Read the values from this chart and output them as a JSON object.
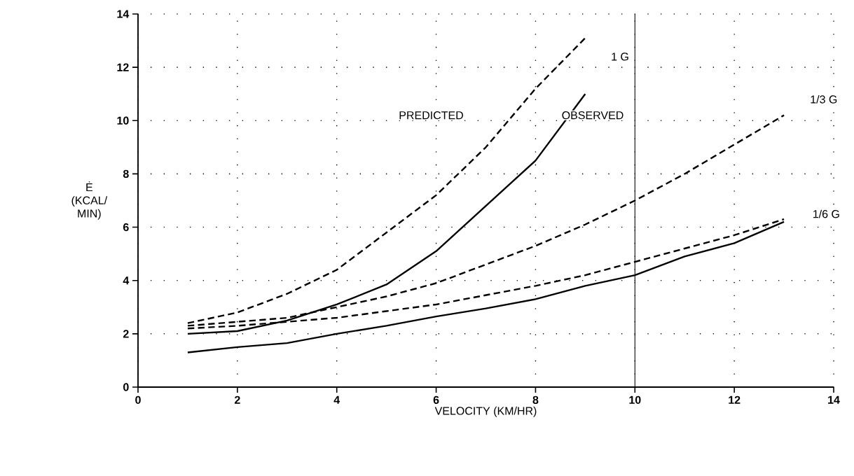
{
  "chart_data": {
    "type": "line",
    "xlabel": "VELOCITY (KM/HR)",
    "ylabel": "Ė (KCAL/ MIN)",
    "xlim": [
      0,
      14
    ],
    "ylim": [
      0,
      14
    ],
    "xticks": [
      0,
      2,
      4,
      6,
      8,
      10,
      12,
      14
    ],
    "yticks": [
      0,
      2,
      4,
      6,
      8,
      10,
      12,
      14
    ],
    "grid": true,
    "marker": "none",
    "series": [
      {
        "color": "#000000",
        "line_style": "dashed",
        "x": [
          1,
          2,
          3,
          4,
          5,
          6,
          7,
          8,
          9
        ],
        "values": [
          2.4,
          2.8,
          3.5,
          4.4,
          5.8,
          7.2,
          9.0,
          11.2,
          13.1
        ]
      },
      {
        "color": "#000000",
        "line_style": "solid",
        "x": [
          1,
          2,
          3,
          4,
          5,
          6,
          7,
          8,
          9
        ],
        "values": [
          2.0,
          2.1,
          2.5,
          3.1,
          3.85,
          5.1,
          6.8,
          8.5,
          11.0
        ]
      },
      {
        "color": "#000000",
        "line_style": "dashed",
        "x": [
          1,
          2,
          3,
          4,
          5,
          6,
          7,
          8,
          9,
          10,
          11,
          12,
          13
        ],
        "values": [
          2.3,
          2.45,
          2.6,
          3.0,
          3.4,
          3.9,
          4.6,
          5.3,
          6.1,
          7.0,
          8.0,
          9.1,
          10.2
        ]
      },
      {
        "color": "#000000",
        "line_style": "dashed",
        "x": [
          1,
          2,
          3,
          4,
          5,
          6,
          7,
          8,
          9,
          10,
          11,
          12,
          13
        ],
        "values": [
          2.2,
          2.3,
          2.45,
          2.6,
          2.85,
          3.1,
          3.45,
          3.8,
          4.2,
          4.7,
          5.2,
          5.7,
          6.3
        ]
      },
      {
        "color": "#000000",
        "line_style": "solid",
        "x": [
          1,
          2,
          3,
          4,
          5,
          6,
          7,
          8,
          9,
          10,
          11,
          12,
          13
        ],
        "values": [
          1.3,
          1.5,
          1.65,
          2.0,
          2.3,
          2.65,
          2.95,
          3.3,
          3.8,
          4.2,
          4.9,
          5.4,
          6.2
        ]
      }
    ],
    "ref_lines": [
      {
        "axis": "x",
        "value": 10,
        "color": "#000000",
        "line_style": "solid"
      }
    ],
    "annotations": [
      "PREDICTED",
      "OBSERVED",
      {
        "text": "1 G",
        "x": 9.7,
        "y": 12.4
      },
      {
        "text": "1/3 G",
        "x": 13.8,
        "y": 10.8
      },
      {
        "text": "1/6 G",
        "x": 13.85,
        "y": 6.5
      }
    ]
  }
}
